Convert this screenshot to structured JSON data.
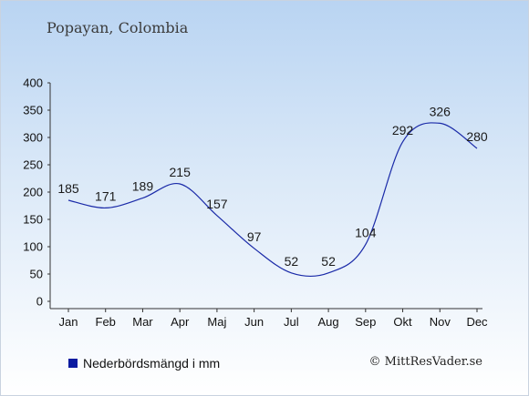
{
  "header": {
    "title": "Popayan, Colombia"
  },
  "legend": {
    "label": "Nederbördsmängd i mm"
  },
  "credit": {
    "text": "© MittResVader.se"
  },
  "colors": {
    "series": "#1a2aa8",
    "swatch": "#0a1aa0"
  },
  "chart_data": {
    "type": "line",
    "title": "Popayan, Colombia",
    "categories": [
      "Jan",
      "Feb",
      "Mar",
      "Apr",
      "Maj",
      "Jun",
      "Jul",
      "Aug",
      "Sep",
      "Okt",
      "Nov",
      "Dec"
    ],
    "series": [
      {
        "name": "Nederbördsmängd i mm",
        "values": [
          185,
          171,
          189,
          215,
          157,
          97,
          52,
          52,
          104,
          292,
          326,
          280
        ]
      }
    ],
    "yticks": [
      0,
      50,
      100,
      150,
      200,
      250,
      300,
      350,
      400
    ],
    "ylim": [
      0,
      400
    ],
    "xlabel": "",
    "ylabel": "",
    "grid": false,
    "legend_position": "bottom-left"
  }
}
